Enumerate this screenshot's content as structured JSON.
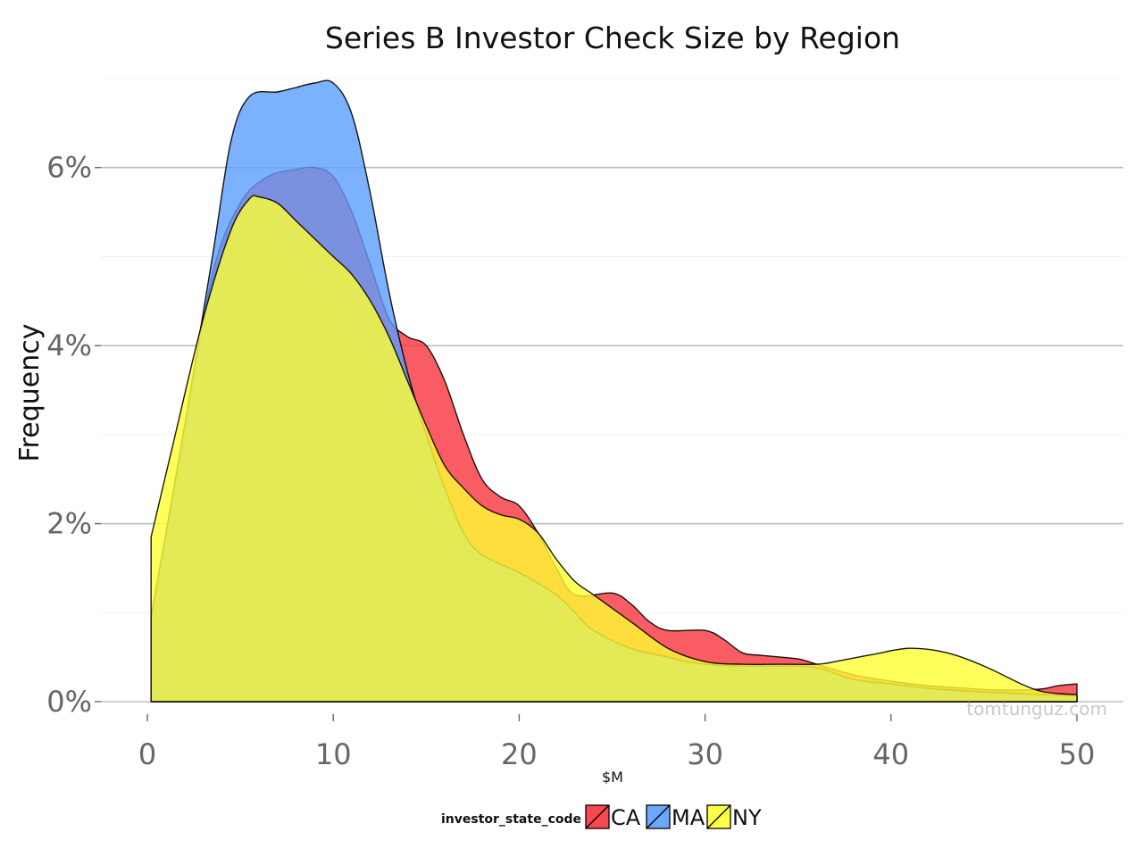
{
  "chart_data": {
    "type": "area",
    "title": "Series B Investor Check Size by Region",
    "xlabel": "$M",
    "ylabel": "Frequency",
    "xlim": [
      -2.5,
      52.5
    ],
    "ylim": [
      0,
      0.07
    ],
    "x_ticks": [
      0,
      10,
      20,
      30,
      40,
      50
    ],
    "x_tick_labels": [
      "0",
      "10",
      "20",
      "30",
      "40",
      "50"
    ],
    "y_ticks": [
      0,
      0.02,
      0.04,
      0.06
    ],
    "y_tick_labels": [
      "0%",
      "2%",
      "4%",
      "6%"
    ],
    "grid": true,
    "legend": {
      "title": "investor_state_code",
      "position": "bottom"
    },
    "watermark": "tomtunguz.com",
    "series": [
      {
        "name": "CA",
        "color": "#F8333C",
        "points": [
          [
            0.2,
            0.0095
          ],
          [
            2,
            0.03
          ],
          [
            3.5,
            0.048
          ],
          [
            5,
            0.056
          ],
          [
            6.5,
            0.059
          ],
          [
            8,
            0.0598
          ],
          [
            9,
            0.06
          ],
          [
            10,
            0.059
          ],
          [
            11,
            0.055
          ],
          [
            12,
            0.049
          ],
          [
            13,
            0.043
          ],
          [
            14,
            0.041
          ],
          [
            15,
            0.04
          ],
          [
            16,
            0.036
          ],
          [
            17,
            0.03
          ],
          [
            18,
            0.025
          ],
          [
            19,
            0.023
          ],
          [
            20,
            0.022
          ],
          [
            21,
            0.019
          ],
          [
            22,
            0.015
          ],
          [
            23,
            0.012
          ],
          [
            25,
            0.0122
          ],
          [
            26,
            0.011
          ],
          [
            27,
            0.009
          ],
          [
            28,
            0.008
          ],
          [
            30,
            0.008
          ],
          [
            31,
            0.007
          ],
          [
            32,
            0.0055
          ],
          [
            33,
            0.0052
          ],
          [
            35,
            0.0048
          ],
          [
            36,
            0.0042
          ],
          [
            38,
            0.003
          ],
          [
            40,
            0.0023
          ],
          [
            42,
            0.0018
          ],
          [
            44,
            0.0015
          ],
          [
            46,
            0.0013
          ],
          [
            48,
            0.0014
          ],
          [
            49,
            0.0018
          ],
          [
            50,
            0.002
          ]
        ]
      },
      {
        "name": "MA",
        "color": "#5B9EFD",
        "points": [
          [
            0.2,
            0.0095
          ],
          [
            2,
            0.031
          ],
          [
            3.5,
            0.05
          ],
          [
            4.5,
            0.063
          ],
          [
            5.5,
            0.068
          ],
          [
            7,
            0.0685
          ],
          [
            8,
            0.069
          ],
          [
            9,
            0.0695
          ],
          [
            10,
            0.0695
          ],
          [
            11,
            0.066
          ],
          [
            12,
            0.057
          ],
          [
            13,
            0.046
          ],
          [
            14,
            0.037
          ],
          [
            15,
            0.03
          ],
          [
            16,
            0.024
          ],
          [
            17,
            0.019
          ],
          [
            18,
            0.0165
          ],
          [
            20,
            0.0145
          ],
          [
            22,
            0.012
          ],
          [
            23,
            0.01
          ],
          [
            24,
            0.008
          ],
          [
            26,
            0.006
          ],
          [
            28,
            0.005
          ],
          [
            29,
            0.0045
          ],
          [
            30,
            0.0042
          ],
          [
            32,
            0.004
          ],
          [
            34,
            0.004
          ],
          [
            36,
            0.0038
          ],
          [
            38,
            0.0025
          ],
          [
            40,
            0.002
          ],
          [
            42,
            0.0015
          ],
          [
            44,
            0.0012
          ],
          [
            46,
            0.001
          ],
          [
            48,
            0.0008
          ],
          [
            50,
            0.0007
          ]
        ]
      },
      {
        "name": "NY",
        "color": "#FFFF33",
        "points": [
          [
            0.2,
            0.0185
          ],
          [
            1.5,
            0.03
          ],
          [
            3,
            0.043
          ],
          [
            4.5,
            0.053
          ],
          [
            5.5,
            0.0565
          ],
          [
            6,
            0.0567
          ],
          [
            7,
            0.056
          ],
          [
            8,
            0.054
          ],
          [
            9,
            0.052
          ],
          [
            10,
            0.05
          ],
          [
            11,
            0.048
          ],
          [
            12,
            0.045
          ],
          [
            13,
            0.041
          ],
          [
            14,
            0.036
          ],
          [
            15,
            0.031
          ],
          [
            16,
            0.0265
          ],
          [
            17,
            0.024
          ],
          [
            18,
            0.022
          ],
          [
            19,
            0.021
          ],
          [
            20,
            0.0205
          ],
          [
            21,
            0.019
          ],
          [
            22,
            0.016
          ],
          [
            23,
            0.0135
          ],
          [
            24,
            0.012
          ],
          [
            26,
            0.009
          ],
          [
            28,
            0.006
          ],
          [
            30,
            0.0045
          ],
          [
            32,
            0.0042
          ],
          [
            34,
            0.0042
          ],
          [
            36,
            0.0042
          ],
          [
            37,
            0.0045
          ],
          [
            39,
            0.0053
          ],
          [
            41,
            0.006
          ],
          [
            43,
            0.0055
          ],
          [
            45,
            0.004
          ],
          [
            47,
            0.002
          ],
          [
            48,
            0.0012
          ],
          [
            49,
            0.0009
          ],
          [
            50,
            0.0008
          ]
        ]
      }
    ]
  }
}
